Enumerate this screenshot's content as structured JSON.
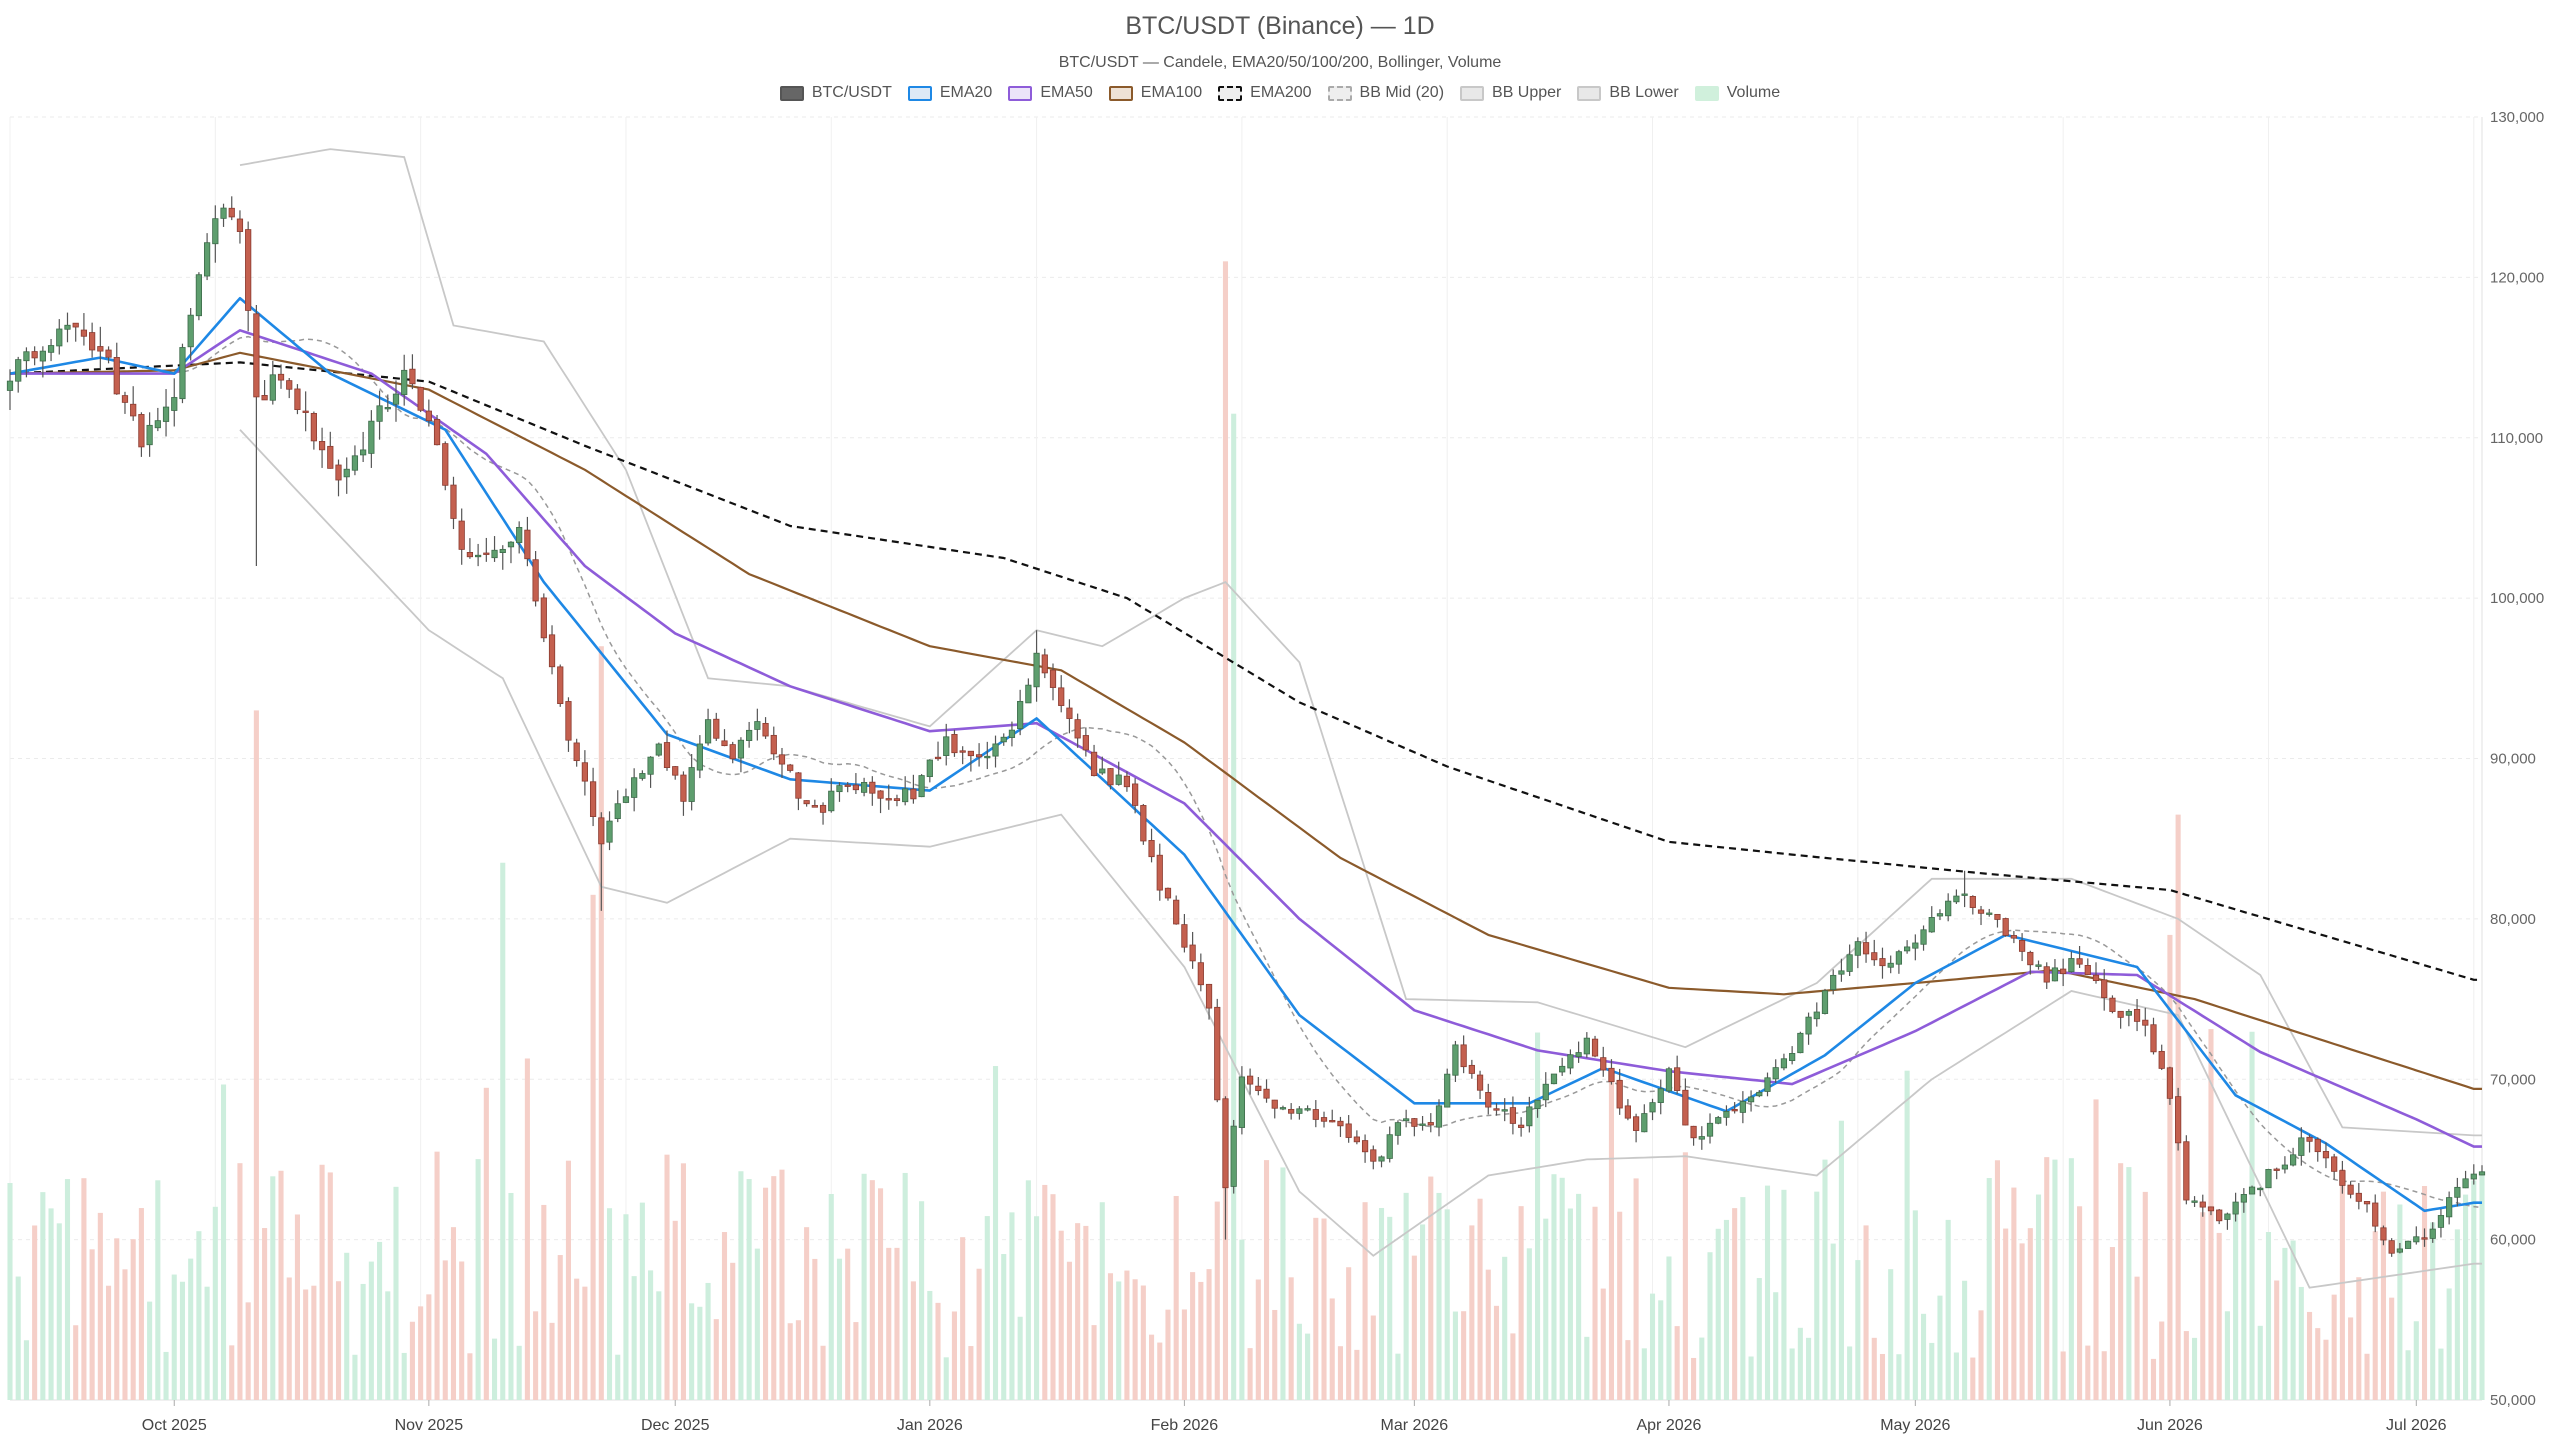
{
  "chart_data": {
    "type": "candlestick",
    "title": "BTC/USDT (Binance) — 1D",
    "subtitle": "BTC/USDT — Candele, EMA20/50/100/200, Bollinger, Volume",
    "legend": [
      {
        "name": "BTC/USDT",
        "fill": "#666666",
        "stroke": "#555555",
        "dashed": false
      },
      {
        "name": "EMA20",
        "fill": "#dde9f6",
        "stroke": "#1e88e5",
        "dashed": false
      },
      {
        "name": "EMA50",
        "fill": "#ece4f9",
        "stroke": "#8e5cd9",
        "dashed": false
      },
      {
        "name": "EMA100",
        "fill": "#eee2d6",
        "stroke": "#8b5a2b",
        "dashed": false
      },
      {
        "name": "EMA200",
        "fill": "#eeeeee",
        "stroke": "#111111",
        "dashed": true
      },
      {
        "name": "BB Mid (20)",
        "fill": "#eeeeee",
        "stroke": "#aaaaaa",
        "dashed": true
      },
      {
        "name": "BB Upper",
        "fill": "#e8e8e8",
        "stroke": "#c8c8c8",
        "dashed": false
      },
      {
        "name": "BB Lower",
        "fill": "#e8e8e8",
        "stroke": "#c8c8c8",
        "dashed": false
      },
      {
        "name": "Volume",
        "fill": "#d0f0dc",
        "stroke": "#d0f0dc",
        "dashed": false
      }
    ],
    "y_axis": {
      "min": 50000,
      "max": 130000,
      "ticks": [
        "50,000",
        "60,000",
        "70,000",
        "80,000",
        "90,000",
        "100,000",
        "110,000",
        "120,000",
        "130,000"
      ],
      "tick_values": [
        50000,
        60000,
        70000,
        80000,
        90000,
        100000,
        110000,
        120000,
        130000
      ],
      "position": "right"
    },
    "x_axis": {
      "start": "2025-09-11",
      "end": "2026-07-09",
      "ticks": [
        {
          "label": "Oct 2025",
          "date": "2025-10-01"
        },
        {
          "label": "Nov 2025",
          "date": "2025-11-01"
        },
        {
          "label": "Dec 2025",
          "date": "2025-12-01"
        },
        {
          "label": "Jan 2026",
          "date": "2026-01-01"
        },
        {
          "label": "Feb 2026",
          "date": "2026-02-01"
        },
        {
          "label": "Mar 2026",
          "date": "2026-03-01"
        },
        {
          "label": "Apr 2026",
          "date": "2026-04-01"
        },
        {
          "label": "May 2026",
          "date": "2026-05-01"
        },
        {
          "label": "Jun 2026",
          "date": "2026-06-01"
        },
        {
          "label": "Jul 2026",
          "date": "2026-07-01"
        }
      ]
    },
    "grid": true,
    "legend_position": "top-center",
    "colors": {
      "up_fill": "#5e9e6e",
      "up_border": "#3d6b4a",
      "down_fill": "#c4604f",
      "down_border": "#8a3b30",
      "wick": "#555555",
      "volume_up": "#cdeedd",
      "volume_down": "#f5cfc8",
      "ema20": "#1e88e5",
      "ema50": "#8e5cd9",
      "ema100": "#8b5a2b",
      "ema200": "#111111",
      "bb_mid": "#999999",
      "bb_band": "#c8c8c8"
    },
    "close_anchors": [
      [
        "2025-09-11",
        114000
      ],
      [
        "2025-09-15",
        116000
      ],
      [
        "2025-09-19",
        117000
      ],
      [
        "2025-09-23",
        114500
      ],
      [
        "2025-09-27",
        109500
      ],
      [
        "2025-10-01",
        112500
      ],
      [
        "2025-10-04",
        120500
      ],
      [
        "2025-10-07",
        124500
      ],
      [
        "2025-10-09",
        123000
      ],
      [
        "2025-10-11",
        112000
      ],
      [
        "2025-10-14",
        114000
      ],
      [
        "2025-10-17",
        111500
      ],
      [
        "2025-10-21",
        107000
      ],
      [
        "2025-10-25",
        110500
      ],
      [
        "2025-10-29",
        114000
      ],
      [
        "2025-11-02",
        110000
      ],
      [
        "2025-11-05",
        102500
      ],
      [
        "2025-11-09",
        103000
      ],
      [
        "2025-11-12",
        104500
      ],
      [
        "2025-11-15",
        97500
      ],
      [
        "2025-11-18",
        91500
      ],
      [
        "2025-11-22",
        85000
      ],
      [
        "2025-11-26",
        88500
      ],
      [
        "2025-11-29",
        91000
      ],
      [
        "2025-12-02",
        87500
      ],
      [
        "2025-12-05",
        92000
      ],
      [
        "2025-12-08",
        90500
      ],
      [
        "2025-12-11",
        92500
      ],
      [
        "2025-12-14",
        89500
      ],
      [
        "2025-12-18",
        86500
      ],
      [
        "2025-12-22",
        88500
      ],
      [
        "2025-12-26",
        87500
      ],
      [
        "2025-12-30",
        88000
      ],
      [
        "2026-01-03",
        91000
      ],
      [
        "2026-01-07",
        90000
      ],
      [
        "2026-01-11",
        91500
      ],
      [
        "2026-01-14",
        96500
      ],
      [
        "2026-01-18",
        92500
      ],
      [
        "2026-01-21",
        89000
      ],
      [
        "2026-01-25",
        88500
      ],
      [
        "2026-01-29",
        82000
      ],
      [
        "2026-02-01",
        78500
      ],
      [
        "2026-02-04",
        74000
      ],
      [
        "2026-02-06",
        63000
      ],
      [
        "2026-02-08",
        70500
      ],
      [
        "2026-02-12",
        68500
      ],
      [
        "2026-02-16",
        68000
      ],
      [
        "2026-02-20",
        67500
      ],
      [
        "2026-02-24",
        64500
      ],
      [
        "2026-02-27",
        67500
      ],
      [
        "2026-03-03",
        67000
      ],
      [
        "2026-03-06",
        72000
      ],
      [
        "2026-03-10",
        68500
      ],
      [
        "2026-03-14",
        67000
      ],
      [
        "2026-03-18",
        70500
      ],
      [
        "2026-03-22",
        72500
      ],
      [
        "2026-03-25",
        69500
      ],
      [
        "2026-03-28",
        66500
      ],
      [
        "2026-04-01",
        70500
      ],
      [
        "2026-04-04",
        66000
      ],
      [
        "2026-04-08",
        68000
      ],
      [
        "2026-04-12",
        69500
      ],
      [
        "2026-04-16",
        72000
      ],
      [
        "2026-04-20",
        75500
      ],
      [
        "2026-04-24",
        78500
      ],
      [
        "2026-04-28",
        77000
      ],
      [
        "2026-05-02",
        79000
      ],
      [
        "2026-05-06",
        81500
      ],
      [
        "2026-05-09",
        80500
      ],
      [
        "2026-05-13",
        78500
      ],
      [
        "2026-05-17",
        76500
      ],
      [
        "2026-05-21",
        77500
      ],
      [
        "2026-05-25",
        74500
      ],
      [
        "2026-05-29",
        73500
      ],
      [
        "2026-06-01",
        69000
      ],
      [
        "2026-06-03",
        62500
      ],
      [
        "2026-06-07",
        61500
      ],
      [
        "2026-06-10",
        62500
      ],
      [
        "2026-06-14",
        64500
      ],
      [
        "2026-06-18",
        66500
      ],
      [
        "2026-06-22",
        63500
      ],
      [
        "2026-06-25",
        62000
      ],
      [
        "2026-06-28",
        59500
      ],
      [
        "2026-07-02",
        60000
      ],
      [
        "2026-07-05",
        62500
      ],
      [
        "2026-07-08",
        64000
      ]
    ],
    "ema_anchors": {
      "EMA20": [
        [
          "2025-09-11",
          114000
        ],
        [
          "2025-09-22",
          115000
        ],
        [
          "2025-10-01",
          114000
        ],
        [
          "2025-10-09",
          118700
        ],
        [
          "2025-10-20",
          114000
        ],
        [
          "2025-11-03",
          110500
        ],
        [
          "2025-11-15",
          101000
        ],
        [
          "2025-11-30",
          91500
        ],
        [
          "2025-12-15",
          88700
        ],
        [
          "2026-01-01",
          88000
        ],
        [
          "2026-01-14",
          92500
        ],
        [
          "2026-02-01",
          84000
        ],
        [
          "2026-02-15",
          74000
        ],
        [
          "2026-03-01",
          68500
        ],
        [
          "2026-03-15",
          68500
        ],
        [
          "2026-03-24",
          70700
        ],
        [
          "2026-04-08",
          68000
        ],
        [
          "2026-04-20",
          71500
        ],
        [
          "2026-05-01",
          76000
        ],
        [
          "2026-05-12",
          79000
        ],
        [
          "2026-05-28",
          77000
        ],
        [
          "2026-06-09",
          69000
        ],
        [
          "2026-06-20",
          66000
        ],
        [
          "2026-07-02",
          61800
        ],
        [
          "2026-07-08",
          62300
        ]
      ],
      "EMA50": [
        [
          "2025-09-11",
          114000
        ],
        [
          "2025-10-01",
          114000
        ],
        [
          "2025-10-09",
          116700
        ],
        [
          "2025-10-25",
          114000
        ],
        [
          "2025-11-08",
          109000
        ],
        [
          "2025-11-20",
          102000
        ],
        [
          "2025-12-01",
          97800
        ],
        [
          "2025-12-15",
          94500
        ],
        [
          "2026-01-01",
          91700
        ],
        [
          "2026-01-14",
          92200
        ],
        [
          "2026-02-01",
          87200
        ],
        [
          "2026-02-15",
          80000
        ],
        [
          "2026-03-01",
          74300
        ],
        [
          "2026-03-16",
          71800
        ],
        [
          "2026-04-01",
          70500
        ],
        [
          "2026-04-16",
          69700
        ],
        [
          "2026-05-01",
          73000
        ],
        [
          "2026-05-15",
          76700
        ],
        [
          "2026-05-28",
          76500
        ],
        [
          "2026-06-12",
          71700
        ],
        [
          "2026-07-01",
          67500
        ],
        [
          "2026-07-08",
          65800
        ]
      ],
      "EMA100": [
        [
          "2025-09-11",
          114000
        ],
        [
          "2025-10-01",
          114200
        ],
        [
          "2025-10-09",
          115300
        ],
        [
          "2025-11-01",
          113000
        ],
        [
          "2025-11-20",
          108000
        ],
        [
          "2025-12-10",
          101500
        ],
        [
          "2026-01-01",
          97000
        ],
        [
          "2026-01-17",
          95500
        ],
        [
          "2026-02-01",
          91000
        ],
        [
          "2026-02-20",
          83800
        ],
        [
          "2026-03-10",
          79000
        ],
        [
          "2026-04-01",
          75700
        ],
        [
          "2026-04-15",
          75300
        ],
        [
          "2026-05-01",
          76000
        ],
        [
          "2026-05-18",
          76800
        ],
        [
          "2026-06-04",
          75000
        ],
        [
          "2026-07-08",
          69400
        ]
      ],
      "EMA200": [
        [
          "2025-09-11",
          114000
        ],
        [
          "2025-10-09",
          114700
        ],
        [
          "2025-11-01",
          113500
        ],
        [
          "2025-11-20",
          109500
        ],
        [
          "2025-12-15",
          104500
        ],
        [
          "2026-01-10",
          102500
        ],
        [
          "2026-01-25",
          100000
        ],
        [
          "2026-02-15",
          93500
        ],
        [
          "2026-03-05",
          89500
        ],
        [
          "2026-04-01",
          84800
        ],
        [
          "2026-04-20",
          83800
        ],
        [
          "2026-05-10",
          82800
        ],
        [
          "2026-06-01",
          81800
        ],
        [
          "2026-07-08",
          76200
        ]
      ]
    },
    "bb_anchors": {
      "BB Upper": [
        [
          "2025-10-09",
          127000
        ],
        [
          "2025-10-20",
          128000
        ],
        [
          "2025-10-29",
          127500
        ],
        [
          "2025-11-04",
          117000
        ],
        [
          "2025-11-15",
          116000
        ],
        [
          "2025-11-25",
          108000
        ],
        [
          "2025-12-05",
          95000
        ],
        [
          "2025-12-15",
          94500
        ],
        [
          "2026-01-01",
          92000
        ],
        [
          "2026-01-14",
          98000
        ],
        [
          "2026-01-22",
          97000
        ],
        [
          "2026-02-01",
          100000
        ],
        [
          "2026-02-06",
          101000
        ],
        [
          "2026-02-15",
          96000
        ],
        [
          "2026-02-28",
          75000
        ],
        [
          "2026-03-16",
          74800
        ],
        [
          "2026-04-03",
          72000
        ],
        [
          "2026-04-19",
          76000
        ],
        [
          "2026-05-03",
          82500
        ],
        [
          "2026-05-20",
          82500
        ],
        [
          "2026-06-02",
          80000
        ],
        [
          "2026-06-12",
          76500
        ],
        [
          "2026-06-22",
          67000
        ],
        [
          "2026-07-08",
          66500
        ]
      ],
      "BB Lower": [
        [
          "2025-10-09",
          110500
        ],
        [
          "2025-10-20",
          104500
        ],
        [
          "2025-11-01",
          98000
        ],
        [
          "2025-11-10",
          95000
        ],
        [
          "2025-11-22",
          82000
        ],
        [
          "2025-11-30",
          81000
        ],
        [
          "2025-12-15",
          85000
        ],
        [
          "2026-01-01",
          84500
        ],
        [
          "2026-01-17",
          86500
        ],
        [
          "2026-02-01",
          77000
        ],
        [
          "2026-02-15",
          63000
        ],
        [
          "2026-02-24",
          59000
        ],
        [
          "2026-03-10",
          64000
        ],
        [
          "2026-03-22",
          65000
        ],
        [
          "2026-04-03",
          65200
        ],
        [
          "2026-04-19",
          64000
        ],
        [
          "2026-05-03",
          70000
        ],
        [
          "2026-05-20",
          75500
        ],
        [
          "2026-06-02",
          74000
        ],
        [
          "2026-06-18",
          57000
        ],
        [
          "2026-07-08",
          58500
        ]
      ]
    },
    "volume": {
      "description_max": 121000,
      "spikes": [
        {
          "date": "2025-10-11",
          "value": 93000
        },
        {
          "date": "2025-11-10",
          "value": 83500
        },
        {
          "date": "2025-11-21",
          "value": 81500
        },
        {
          "date": "2025-11-22",
          "value": 97000
        },
        {
          "date": "2026-02-06",
          "value": 121000
        },
        {
          "date": "2026-02-07",
          "value": 111500
        },
        {
          "date": "2026-06-02",
          "value": 86500
        },
        {
          "date": "2026-06-01",
          "value": 79000
        }
      ]
    }
  }
}
